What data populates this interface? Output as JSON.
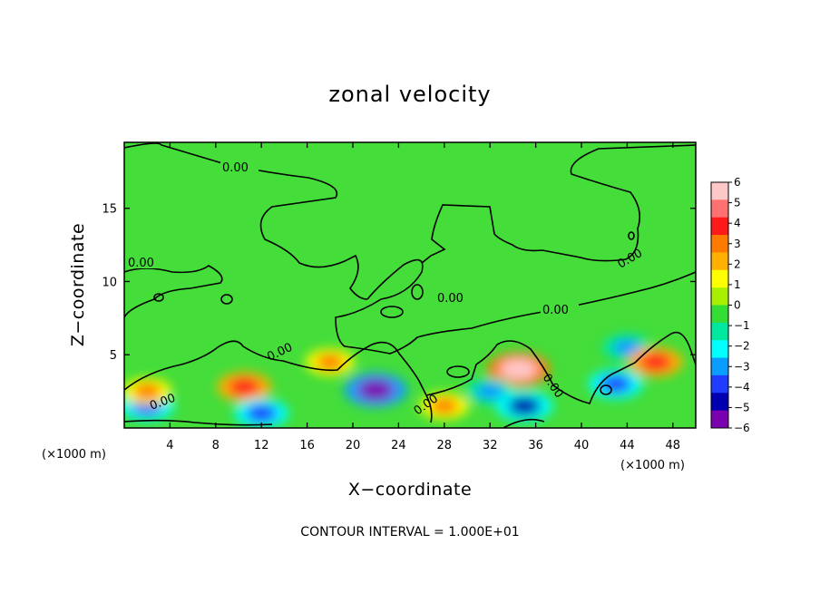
{
  "chart_data": {
    "type": "heatmap",
    "title": "zonal velocity",
    "xlabel": "X−coordinate",
    "ylabel": "Z−coordinate",
    "x_scale_note_left": "(×1000 m)",
    "x_scale_note_right": "(×1000 m)",
    "xlim": [
      0,
      50
    ],
    "ylim": [
      0,
      19.5
    ],
    "xticks": [
      4,
      8,
      12,
      16,
      20,
      24,
      28,
      32,
      36,
      40,
      44,
      48
    ],
    "xtick_labels": [
      "4",
      "8",
      "12",
      "16",
      "20",
      "24",
      "28",
      "32",
      "36",
      "40",
      "44",
      "48"
    ],
    "yticks": [
      5,
      10,
      15
    ],
    "ytick_labels": [
      "5",
      "10",
      "15"
    ],
    "colorbar": {
      "min": -6,
      "max": 6,
      "ticks": [
        6,
        5,
        4,
        3,
        2,
        1,
        0,
        -1,
        -2,
        -3,
        -4,
        -5,
        -6
      ],
      "tick_labels": [
        "6",
        "5",
        "4",
        "3",
        "2",
        "1",
        "0",
        "−1",
        "−2",
        "−3",
        "−4",
        "−5",
        "−6"
      ],
      "colors": [
        "#ffc8c8",
        "#ff7070",
        "#ff1a1a",
        "#ff7b00",
        "#ffb000",
        "#ffff00",
        "#a8f000",
        "#33dd33",
        "#00e8a0",
        "#00ffff",
        "#0a9cff",
        "#1f3cff",
        "#0000b0",
        "#7a00b0"
      ]
    },
    "contour_labels": [
      "0.00",
      "0.00",
      "0.00",
      "0.00",
      "0.00",
      "0.00",
      "0.00",
      "0.00",
      "0.00",
      "0.00"
    ],
    "footer": "CONTOUR INTERVAL = 1.000E+01",
    "features": [
      {
        "x": 22,
        "z": 2.6,
        "value": -5.5
      },
      {
        "x": 10.5,
        "z": 2.8,
        "value": 4
      },
      {
        "x": 34.5,
        "z": 4,
        "value": 5.5
      },
      {
        "x": 44,
        "z": 5.5,
        "value": -3
      },
      {
        "x": 2,
        "z": 1.5,
        "value": -4
      },
      {
        "x": 2,
        "z": 2.5,
        "value": 3
      },
      {
        "x": 12,
        "z": 1,
        "value": -4
      },
      {
        "x": 28,
        "z": 1.5,
        "value": 3
      },
      {
        "x": 32,
        "z": 2.5,
        "value": -3
      },
      {
        "x": 35,
        "z": 1.5,
        "value": -4.5
      },
      {
        "x": 46.5,
        "z": 4.5,
        "value": 4
      },
      {
        "x": 43,
        "z": 3,
        "value": -4
      },
      {
        "x": 18,
        "z": 4.5,
        "value": 3
      }
    ]
  }
}
